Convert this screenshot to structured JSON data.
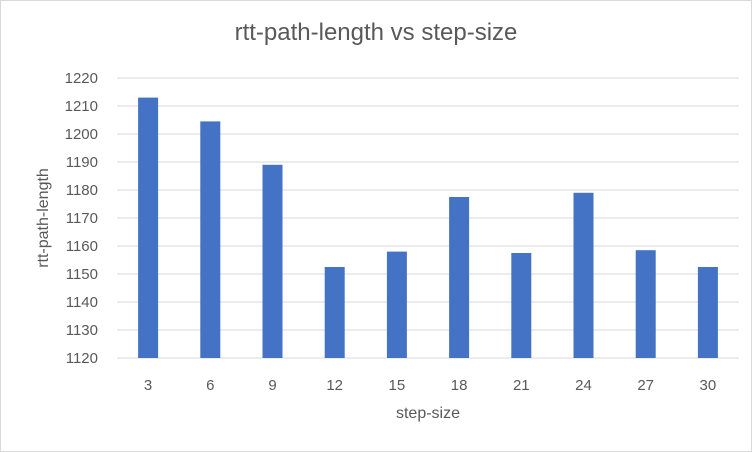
{
  "chart_data": {
    "type": "bar",
    "title": "rtt-path-length vs step-size",
    "xlabel": "step-size",
    "ylabel": "rtt-path-length",
    "categories": [
      "3",
      "6",
      "9",
      "12",
      "15",
      "18",
      "21",
      "24",
      "27",
      "30"
    ],
    "values": [
      1213,
      1204.5,
      1189,
      1152.5,
      1158,
      1177.5,
      1157.5,
      1179,
      1158.5,
      1152.5
    ],
    "ylim": [
      1120,
      1220
    ],
    "yticks": [
      1120,
      1130,
      1140,
      1150,
      1160,
      1170,
      1180,
      1190,
      1200,
      1210,
      1220
    ],
    "grid": true,
    "legend": "none",
    "colors": {
      "bar": "#4472c4",
      "grid": "#d9d9d9",
      "text": "#595959"
    }
  }
}
